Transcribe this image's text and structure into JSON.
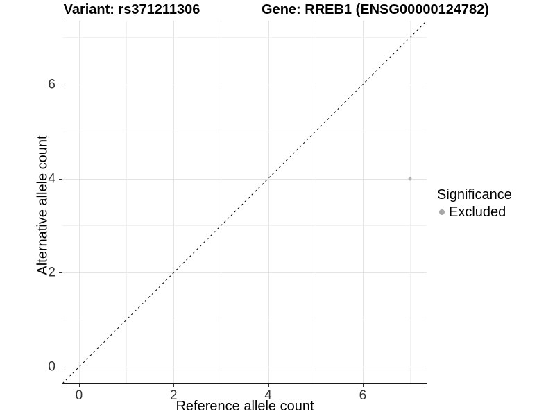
{
  "chart_data": {
    "type": "scatter",
    "titles": {
      "variant": "Variant: rs371211306",
      "gene": "Gene: RREB1 (ENSG00000124782)"
    },
    "xlabel": "Reference allele count",
    "ylabel": "Alternative allele count",
    "xlim": [
      -0.35,
      7.35
    ],
    "ylim": [
      -0.35,
      7.35
    ],
    "x_major_ticks": [
      0,
      2,
      4,
      6
    ],
    "x_minor_ticks": [
      1,
      3,
      5,
      7
    ],
    "y_major_ticks": [
      0,
      2,
      4,
      6
    ],
    "y_minor_ticks": [
      1,
      3,
      5,
      7
    ],
    "grid": "major+minor",
    "reference_line": {
      "kind": "identity y=x",
      "style": "dashed",
      "color": "#000000"
    },
    "series": [
      {
        "name": "Excluded",
        "color": "#b3b3b3",
        "points": [
          {
            "x": 7,
            "y": 4
          }
        ]
      }
    ],
    "legend": {
      "title": "Significance",
      "position": "right",
      "entries": [
        {
          "label": "Excluded",
          "marker": "circle",
          "color": "#a6a6a6"
        }
      ]
    }
  },
  "colors": {
    "background": "#ffffff",
    "grid_major": "#e4e4e4",
    "grid_minor": "#f1f1f1",
    "axis_line": "#1a1a1a",
    "tick_label": "#333333",
    "title": "#000000"
  }
}
